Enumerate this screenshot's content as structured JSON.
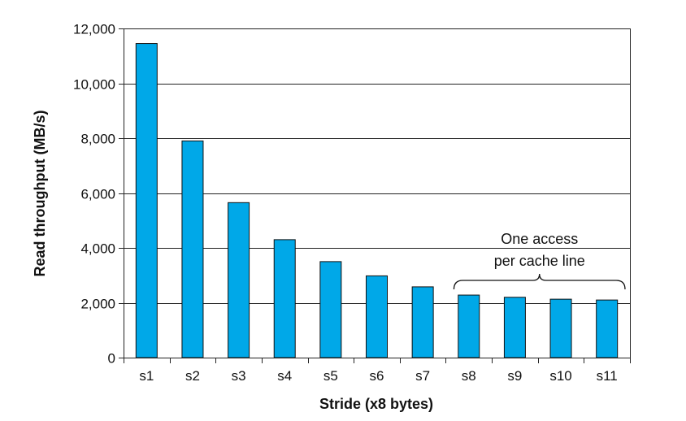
{
  "chart_data": {
    "type": "bar",
    "title": "",
    "xlabel": "Stride (x8 bytes)",
    "ylabel": "Read throughput (MB/s)",
    "ylim": [
      0,
      12000
    ],
    "yticks": [
      0,
      2000,
      4000,
      6000,
      8000,
      10000,
      12000
    ],
    "ytick_labels": [
      "0",
      "2,000",
      "4,000",
      "6,000",
      "8,000",
      "10,000",
      "12,000"
    ],
    "categories": [
      "s1",
      "s2",
      "s3",
      "s4",
      "s5",
      "s6",
      "s7",
      "s8",
      "s9",
      "s10",
      "s11"
    ],
    "values": [
      11450,
      7900,
      5650,
      4300,
      3500,
      2980,
      2580,
      2280,
      2200,
      2130,
      2100
    ],
    "grid": "horizontal",
    "bar_color": "#00a8e8",
    "bar_edge_color": "#111111",
    "annotation": {
      "lines": [
        "One access",
        "per cache line"
      ],
      "brace_from": "s8",
      "brace_to": "s11"
    }
  }
}
